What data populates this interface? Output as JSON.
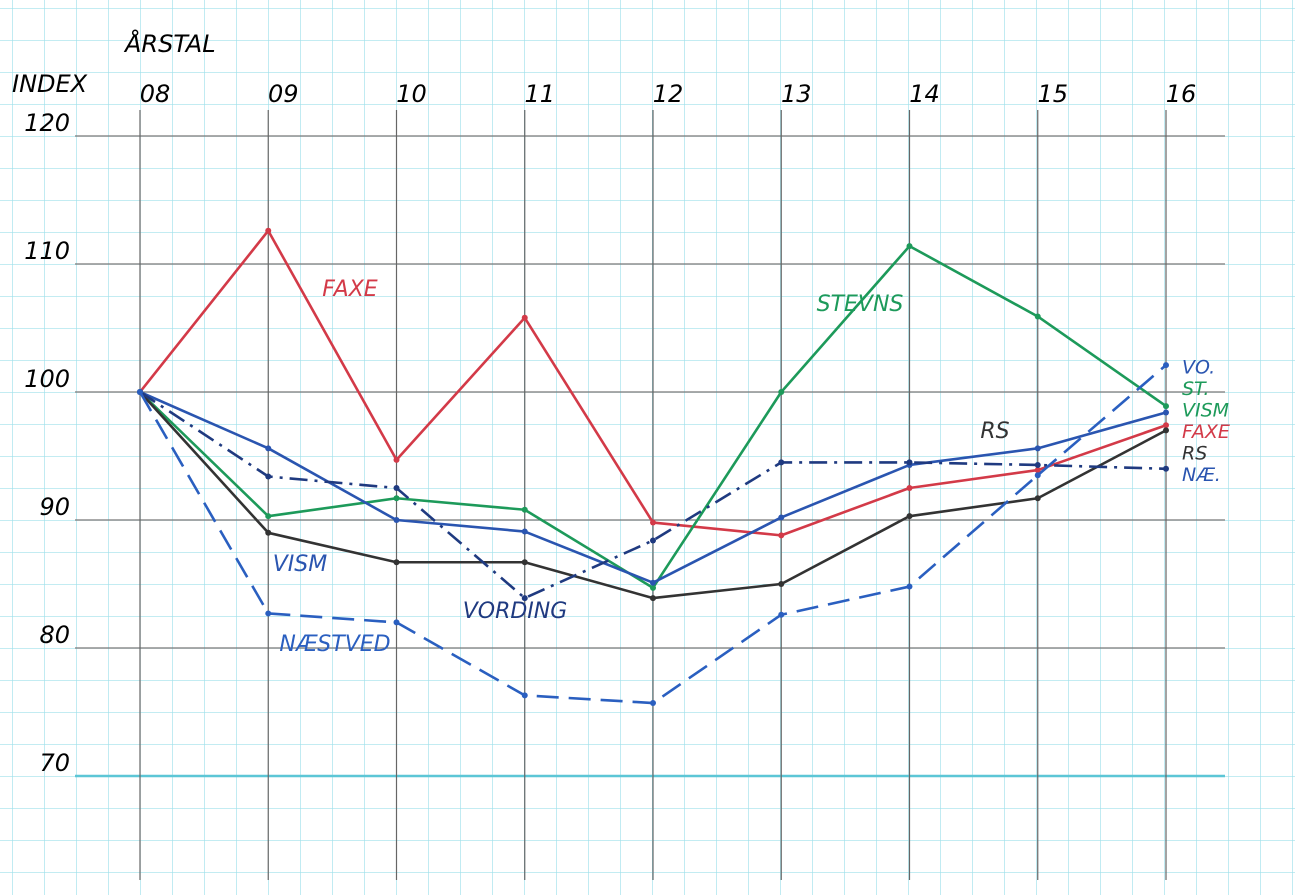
{
  "chart_data": {
    "type": "line",
    "x_label": "ÅRSTAL",
    "y_label": "INDEX",
    "categories": [
      "08",
      "09",
      "10",
      "11",
      "12",
      "13",
      "14",
      "15",
      "16"
    ],
    "ylim": [
      70,
      120
    ],
    "yticks": [
      70,
      80,
      90,
      100,
      110,
      120
    ],
    "grid": true,
    "series": [
      {
        "name": "FAXE",
        "color": "#d33a48",
        "dash": "solid",
        "values": [
          100,
          112.6,
          94.7,
          105.8,
          89.8,
          88.8,
          92.5,
          93.9,
          97.4
        ]
      },
      {
        "name": "STEVNS",
        "color": "#1d9a5a",
        "dash": "solid",
        "values": [
          100,
          90.3,
          91.7,
          90.8,
          84.7,
          100,
          111.4,
          105.9,
          98.9
        ]
      },
      {
        "name": "RS",
        "color": "#333333",
        "dash": "solid",
        "values": [
          100,
          89,
          86.7,
          86.7,
          83.9,
          85,
          90.3,
          91.7,
          97
        ]
      },
      {
        "name": "VISM",
        "color": "#2a55b0",
        "dash": "solid",
        "values": [
          100,
          95.6,
          90,
          89.1,
          85.1,
          90.2,
          94.3,
          95.6,
          98.4
        ]
      },
      {
        "name": "VORDING",
        "color": "#1f3a80",
        "dash": "dashdot",
        "values": [
          100,
          93.4,
          92.5,
          83.9,
          88.4,
          94.5,
          94.5,
          94.3,
          94
        ]
      },
      {
        "name": "NÆSTVED",
        "color": "#2a5fc0",
        "dash": "dashed",
        "values": [
          100,
          82.7,
          82,
          76.3,
          75.7,
          82.6,
          84.8,
          93.5,
          102.1
        ]
      }
    ],
    "end_labels": [
      {
        "text": "VO.",
        "color": "#2a55b0"
      },
      {
        "text": "ST.",
        "color": "#1d9a5a"
      },
      {
        "text": "VISM",
        "color": "#1d9a5a"
      },
      {
        "text": "FAXE",
        "color": "#d33a48"
      },
      {
        "text": "RS",
        "color": "#333333"
      },
      {
        "text": "NÆ.",
        "color": "#2a55b0"
      }
    ]
  }
}
